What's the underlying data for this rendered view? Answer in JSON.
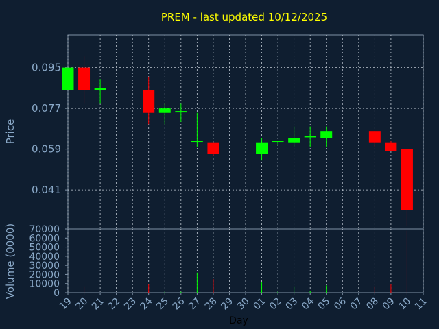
{
  "chart_data": {
    "type": "candlestick",
    "title": "PREM - last updated 10/12/2025",
    "price_ylabel": "Price",
    "volume_ylabel": "Volume (0000)",
    "xlabel": "Day",
    "colors": {
      "background": "#0f1e30",
      "frame": "#7f92a6",
      "grid": "#c3ccd6",
      "title": "#ffff00",
      "tick": "#8aa9c8",
      "axis_label": "#8aa9c8",
      "up": "#00ff00",
      "down": "#ff0000",
      "wick": "#d8d8d8"
    },
    "price_ylim": [
      0.0238,
      0.1094
    ],
    "price_yticks": [
      0.041,
      0.059,
      0.077,
      0.095
    ],
    "price_yticklabels": [
      "0.041",
      "0.059",
      "0.077",
      "0.095"
    ],
    "volume_ylim": [
      0,
      70000
    ],
    "volume_yticks": [
      0,
      10000,
      20000,
      30000,
      40000,
      50000,
      60000,
      70000
    ],
    "volume_yticklabels": [
      "0",
      "10000",
      "20000",
      "30000",
      "40000",
      "50000",
      "60000",
      "70000"
    ],
    "x_ticklabels": [
      "19",
      "20",
      "21",
      "22",
      "23",
      "24",
      "25",
      "26",
      "27",
      "28",
      "29",
      "30",
      "01",
      "02",
      "03",
      "04",
      "05",
      "06",
      "07",
      "08",
      "09",
      "10",
      "11"
    ],
    "candles": [
      {
        "day": "19",
        "open": 0.085,
        "high": 0.095,
        "low": 0.085,
        "close": 0.095,
        "volume": 0
      },
      {
        "day": "20",
        "open": 0.095,
        "high": 0.1,
        "low": 0.079,
        "close": 0.085,
        "volume": 7000
      },
      {
        "day": "21",
        "open": 0.085,
        "high": 0.09,
        "low": 0.079,
        "close": 0.0855,
        "volume": 0
      },
      {
        "day": "24",
        "open": 0.085,
        "high": 0.091,
        "low": 0.07,
        "close": 0.075,
        "volume": 9000
      },
      {
        "day": "25",
        "open": 0.075,
        "high": 0.079,
        "low": 0.07,
        "close": 0.077,
        "volume": 1000
      },
      {
        "day": "26",
        "open": 0.075,
        "high": 0.079,
        "low": 0.071,
        "close": 0.0755,
        "volume": 1000
      },
      {
        "day": "27",
        "open": 0.062,
        "high": 0.075,
        "low": 0.06,
        "close": 0.0625,
        "volume": 22000
      },
      {
        "day": "28",
        "open": 0.062,
        "high": 0.062,
        "low": 0.056,
        "close": 0.057,
        "volume": 15000
      },
      {
        "day": "01",
        "open": 0.057,
        "high": 0.064,
        "low": 0.054,
        "close": 0.062,
        "volume": 12000
      },
      {
        "day": "02",
        "open": 0.062,
        "high": 0.0625,
        "low": 0.061,
        "close": 0.0625,
        "volume": 1000
      },
      {
        "day": "03",
        "open": 0.062,
        "high": 0.069,
        "low": 0.06,
        "close": 0.064,
        "volume": 7000
      },
      {
        "day": "04",
        "open": 0.064,
        "high": 0.069,
        "low": 0.06,
        "close": 0.0645,
        "volume": 2000
      },
      {
        "day": "05",
        "open": 0.064,
        "high": 0.069,
        "low": 0.06,
        "close": 0.067,
        "volume": 8000
      },
      {
        "day": "08",
        "open": 0.067,
        "high": 0.067,
        "low": 0.06,
        "close": 0.062,
        "volume": 7000
      },
      {
        "day": "09",
        "open": 0.062,
        "high": 0.0625,
        "low": 0.058,
        "close": 0.058,
        "volume": 9000
      },
      {
        "day": "10",
        "open": 0.059,
        "high": 0.059,
        "low": 0.025,
        "close": 0.032,
        "volume": 68000
      }
    ]
  }
}
